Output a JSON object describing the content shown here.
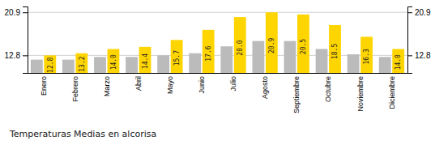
{
  "chart_data": {
    "type": "bar",
    "title": "Temperaturas Medias en alcorisa",
    "categories": [
      "Enero",
      "Febrero",
      "Marzo",
      "Abril",
      "Mayo",
      "Junio",
      "Julio",
      "Agosto",
      "Septiembre",
      "Octubre",
      "Noviembre",
      "Diciembre"
    ],
    "series": [
      {
        "color": "#BBBBBB",
        "values": [
          12.0,
          12.0,
          12.5,
          12.5,
          12.8,
          13.2,
          14.5,
          15.5,
          15.5,
          14.0,
          13.0,
          12.5
        ]
      },
      {
        "color": "#FFD500",
        "values": [
          12.8,
          13.2,
          14.0,
          14.4,
          15.7,
          17.6,
          20.0,
          20.9,
          20.5,
          18.5,
          16.3,
          14.0
        ],
        "data_labels": true,
        "value_labels": [
          "12.8",
          "13.2",
          "14.0",
          "14.4",
          "15.7",
          "17.6",
          "20.0",
          "20.9",
          "20.5",
          "18.5",
          "16.3",
          "14.0"
        ]
      }
    ],
    "ylim": [
      9.5,
      22.0
    ],
    "yticks": [
      12.8,
      20.9
    ],
    "y2lim": [
      9.5,
      22.0
    ],
    "y2ticks": [
      12.8,
      20.9
    ],
    "grid": true
  }
}
